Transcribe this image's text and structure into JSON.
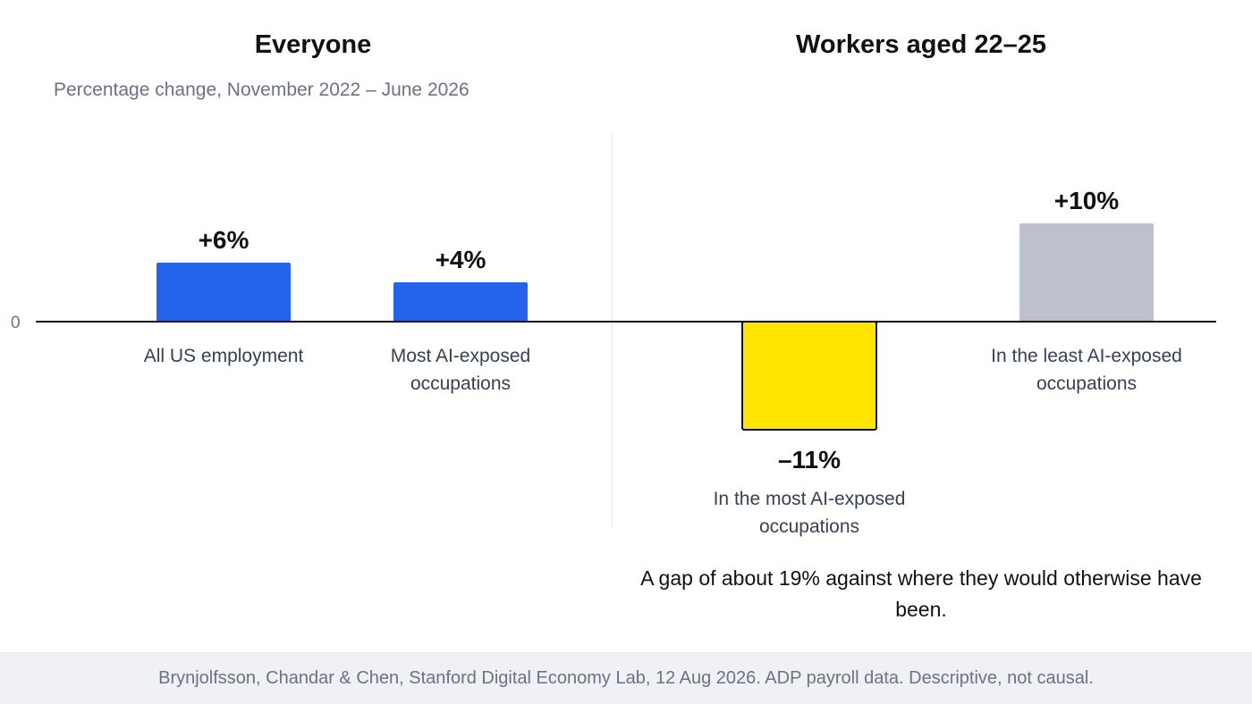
{
  "chart_data": {
    "type": "bar",
    "subtitle": "Percentage change, November 2022 – June 2026",
    "zero_tick": "0",
    "unit": "%",
    "ylim": [
      -12,
      12
    ],
    "panels": [
      {
        "title": "Everyone",
        "bars": [
          {
            "category": "All US employment",
            "value": 6,
            "label": "+6%",
            "color": "#2563eb"
          },
          {
            "category": "Most AI-exposed occupations",
            "value": 4,
            "label": "+4%",
            "color": "#2563eb"
          }
        ]
      },
      {
        "title": "Workers aged 22–25",
        "bars": [
          {
            "category": "In the most AI-exposed occupations",
            "value": -11,
            "label": "–11%",
            "color": "#ffe500"
          },
          {
            "category": "In the least AI-exposed occupations",
            "value": 10,
            "label": "+10%",
            "color": "#bcc1cc"
          }
        ]
      }
    ],
    "annotation": "A gap of about 19% against where they would otherwise have been."
  },
  "footer": "Brynjolfsson, Chandar & Chen, Stanford Digital Economy Lab, 12 Aug 2026. ADP payroll data. Descriptive, not causal."
}
